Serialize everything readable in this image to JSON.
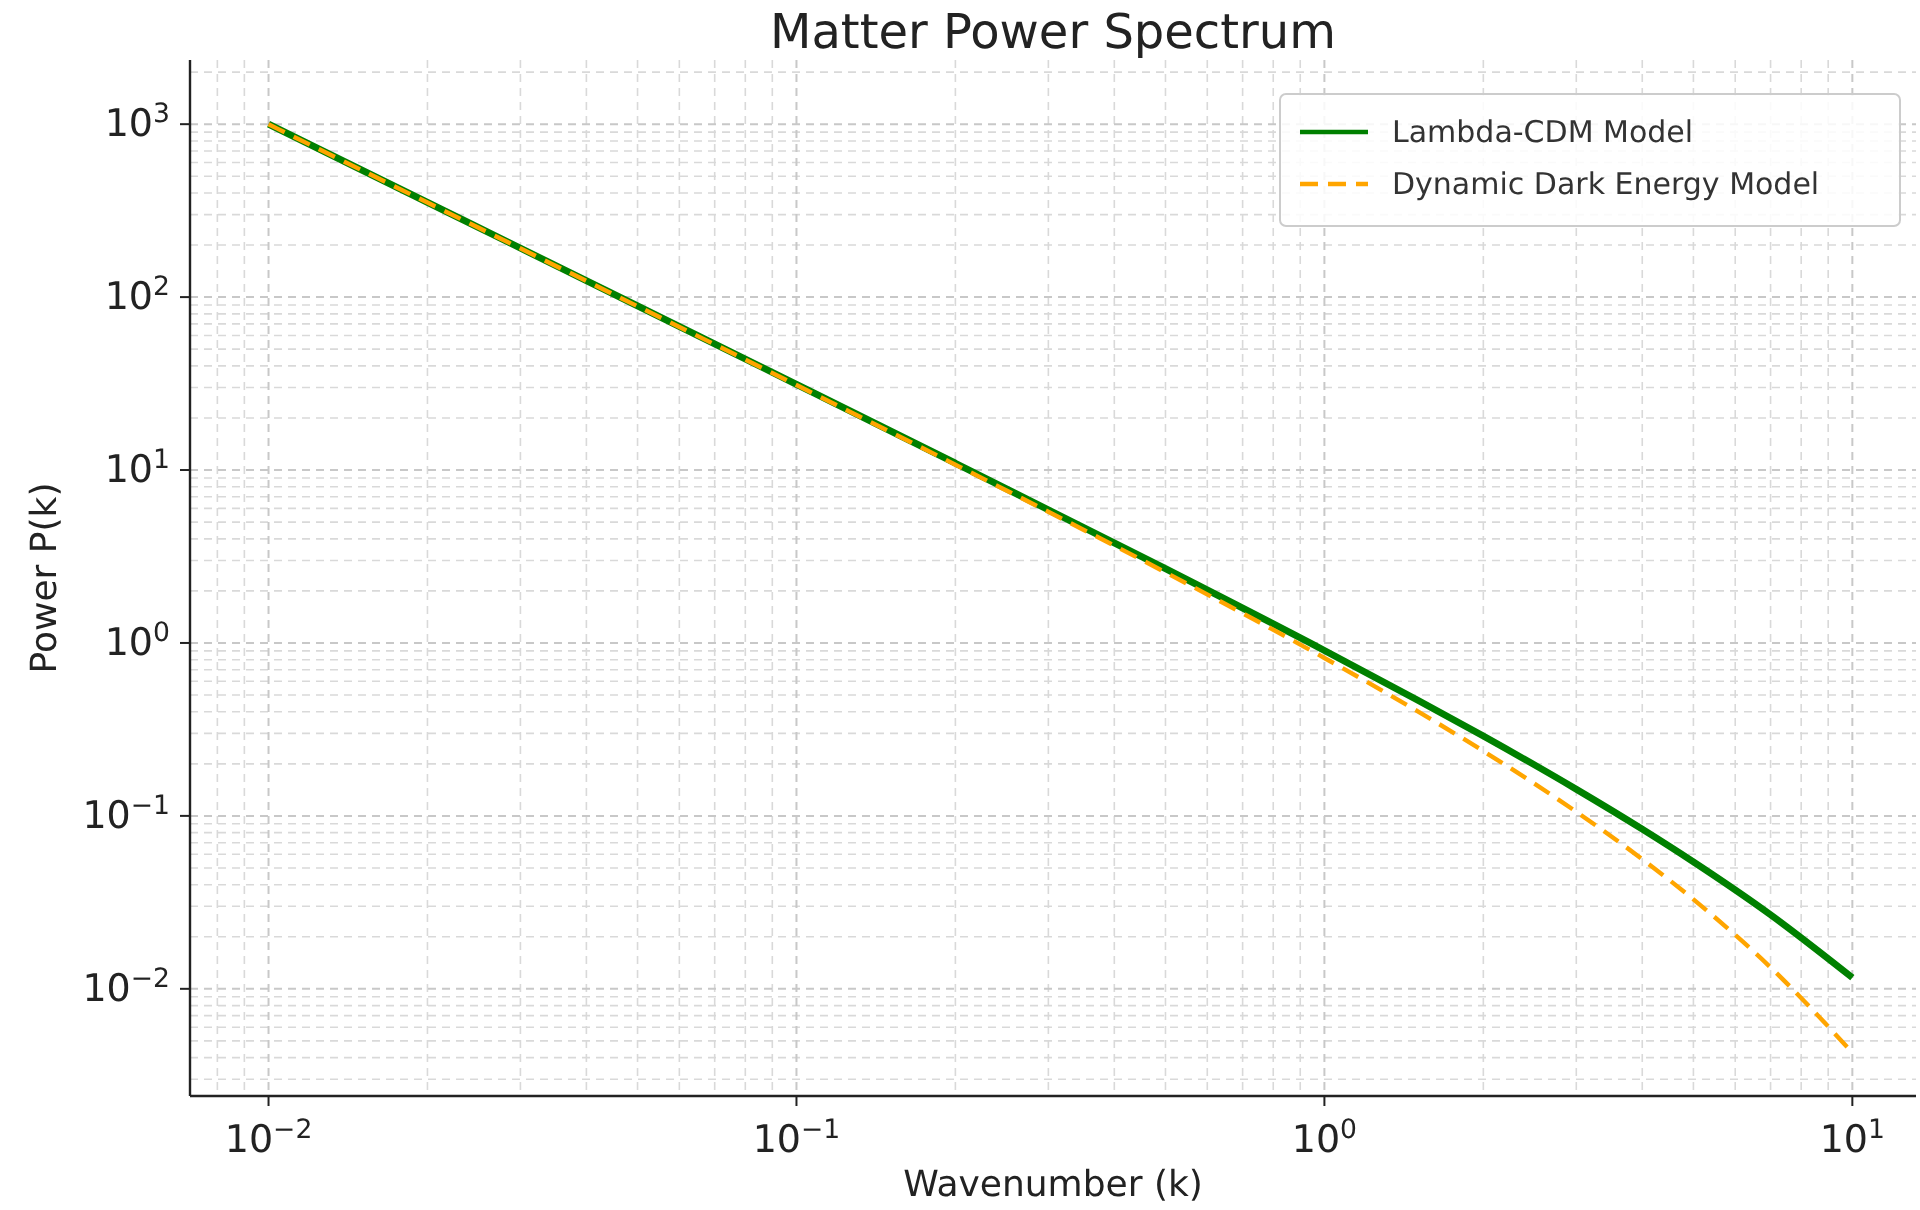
{
  "chart_data": {
    "type": "line",
    "title": "Matter Power Spectrum",
    "xlabel": "Wavenumber (k)",
    "ylabel": "Power P(k)",
    "log": "xy",
    "grid": true,
    "legend": "top right",
    "xlim": [
      0.0071,
      13.2
    ],
    "ylim": [
      0.0024,
      2350
    ],
    "xticks": [
      {
        "value": 0.01,
        "label": "10$^{−2}$"
      },
      {
        "value": 0.1,
        "label": "10$^{−1}$"
      },
      {
        "value": 1,
        "label": "10$^{0}$"
      },
      {
        "value": 10,
        "label": "10$^{1}$"
      }
    ],
    "yticks": [
      {
        "value": 0.01,
        "label": "10$^{−2}$"
      },
      {
        "value": 0.1,
        "label": "10$^{−1}$"
      },
      {
        "value": 1,
        "label": "10$^{0}$"
      },
      {
        "value": 10,
        "label": "10$^{1}$"
      },
      {
        "value": 100,
        "label": "10$^{2}$"
      },
      {
        "value": 1000,
        "label": "10$^{3}$"
      }
    ],
    "x": [
      0.01,
      0.02,
      0.05,
      0.1,
      0.2,
      0.5,
      1,
      1.5,
      2,
      3,
      4,
      5,
      7,
      10
    ],
    "series": [
      {
        "name": "Lambda-CDM Model",
        "color": "#008000",
        "line_style": "solid",
        "values": [
          1000,
          353,
          89.0,
          31.3,
          10.96,
          2.69,
          0.905,
          0.4685,
          0.2895,
          0.1426,
          0.0838,
          0.0542,
          0.0268,
          0.0116
        ]
      },
      {
        "name": "Dynamic Dark Energy Model",
        "color": "#ffa500",
        "line_style": "dashed",
        "values": [
          998,
          352,
          88.5,
          31.0,
          10.74,
          2.56,
          0.819,
          0.4033,
          0.237,
          0.1056,
          0.0562,
          0.0329,
          0.0133,
          0.00428
        ]
      }
    ]
  }
}
